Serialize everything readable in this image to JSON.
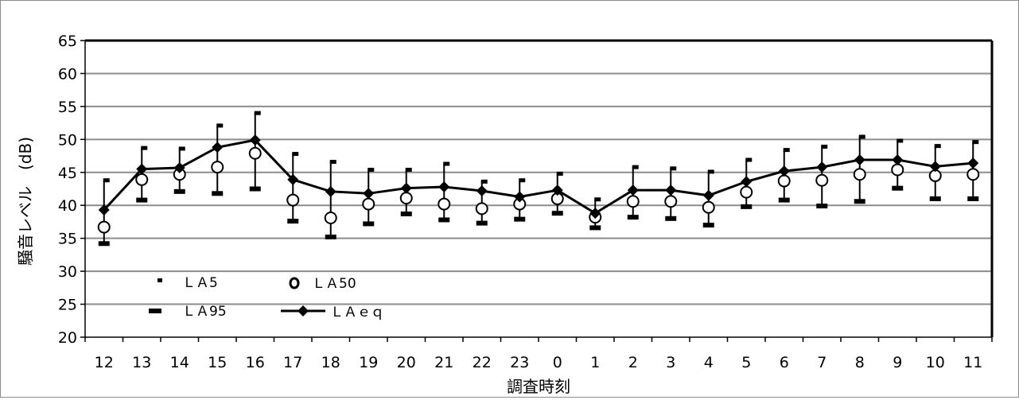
{
  "chart_data": {
    "type": "line",
    "title": "",
    "xlabel": "調査時刻",
    "ylabel": "騒音レベル　(dB)",
    "ylim": [
      20,
      65
    ],
    "y_ticks": [
      "20",
      "25",
      "30",
      "35",
      "40",
      "45",
      "50",
      "55",
      "60",
      "65"
    ],
    "categories": [
      "12",
      "13",
      "14",
      "15",
      "16",
      "17",
      "18",
      "19",
      "20",
      "21",
      "22",
      "23",
      "0",
      "1",
      "2",
      "3",
      "4",
      "5",
      "6",
      "7",
      "8",
      "9",
      "10",
      "11"
    ],
    "grid": true,
    "legend_position": "bottom-left",
    "series": [
      {
        "name": "ＬＡ5",
        "marker": "dash-small",
        "values": [
          43.8,
          48.7,
          48.6,
          52.1,
          54.0,
          47.8,
          46.6,
          45.4,
          45.4,
          46.3,
          43.6,
          43.8,
          44.8,
          40.9,
          45.8,
          45.6,
          45.1,
          46.9,
          48.4,
          48.9,
          50.4,
          49.8,
          49.0,
          49.6
        ]
      },
      {
        "name": "ＬＡ50",
        "marker": "circle",
        "values": [
          36.7,
          43.9,
          44.7,
          45.8,
          47.9,
          40.8,
          38.1,
          40.2,
          41.1,
          40.2,
          39.5,
          40.2,
          41.0,
          38.2,
          40.6,
          40.6,
          39.7,
          42.0,
          43.7,
          43.8,
          44.7,
          45.4,
          44.5,
          44.7
        ]
      },
      {
        "name": "ＬＡ95",
        "marker": "dash-large",
        "values": [
          34.2,
          40.8,
          42.1,
          41.8,
          42.5,
          37.6,
          35.2,
          37.2,
          38.7,
          37.8,
          37.3,
          37.9,
          38.8,
          36.6,
          38.2,
          38.0,
          37.0,
          39.8,
          40.8,
          39.9,
          40.6,
          42.6,
          41.0,
          41.0
        ]
      },
      {
        "name": "ＬＡｅｑ",
        "marker": "diamond-line",
        "values": [
          39.3,
          45.5,
          45.7,
          48.8,
          49.9,
          43.9,
          42.1,
          41.8,
          42.6,
          42.8,
          42.2,
          41.3,
          42.3,
          38.8,
          42.3,
          42.3,
          41.5,
          43.6,
          45.2,
          45.8,
          46.9,
          46.9,
          45.9,
          46.4
        ]
      }
    ]
  }
}
